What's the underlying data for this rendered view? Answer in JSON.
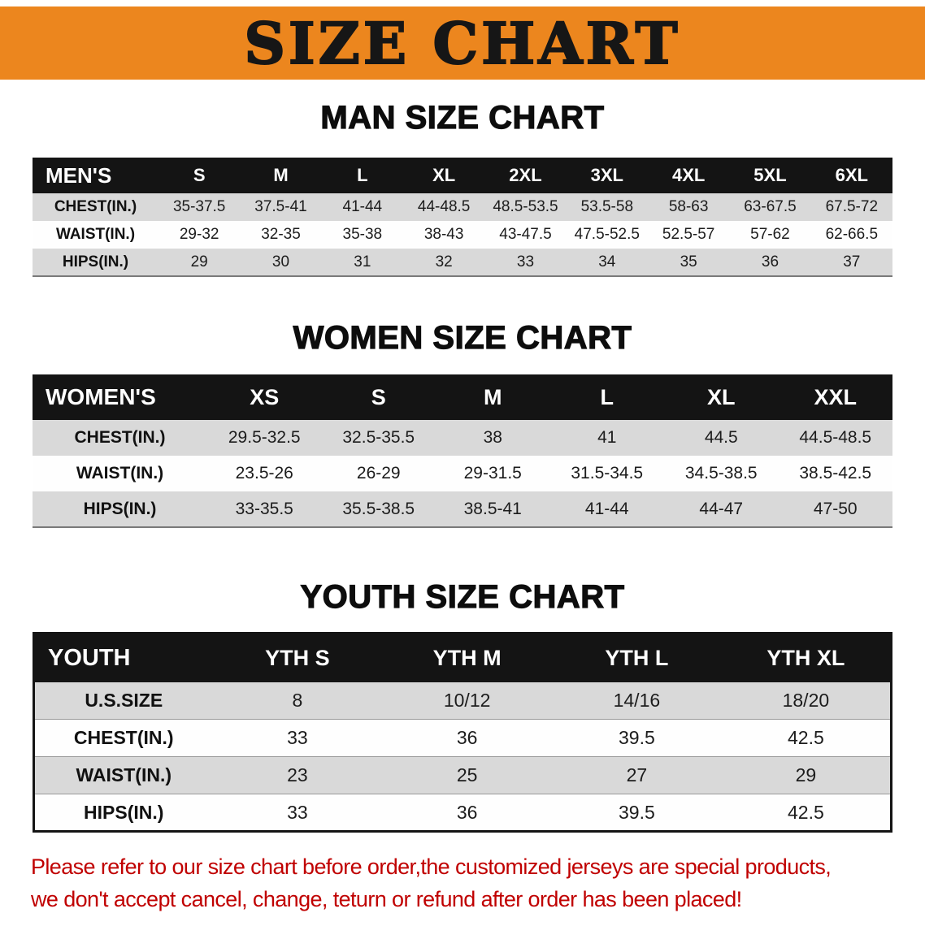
{
  "banner": {
    "title": "SIZE CHART",
    "bg_color": "#EC861E",
    "text_color": "#161616"
  },
  "sections": [
    {
      "heading": "MAN SIZE CHART",
      "table": {
        "header": [
          "MEN'S",
          "S",
          "M",
          "L",
          "XL",
          "2XL",
          "3XL",
          "4XL",
          "5XL",
          "6XL"
        ],
        "rows": [
          {
            "label": "CHEST(IN.)",
            "values": [
              "35-37.5",
              "37.5-41",
              "41-44",
              "44-48.5",
              "48.5-53.5",
              "53.5-58",
              "58-63",
              "63-67.5",
              "67.5-72"
            ]
          },
          {
            "label": "WAIST(IN.)",
            "values": [
              "29-32",
              "32-35",
              "35-38",
              "38-43",
              "43-47.5",
              "47.5-52.5",
              "52.5-57",
              "57-62",
              "62-66.5"
            ]
          },
          {
            "label": "HIPS(IN.)",
            "values": [
              "29",
              "30",
              "31",
              "32",
              "33",
              "34",
              "35",
              "36",
              "37"
            ]
          }
        ]
      }
    },
    {
      "heading": "WOMEN SIZE CHART",
      "table": {
        "header": [
          "WOMEN'S",
          "XS",
          "S",
          "M",
          "L",
          "XL",
          "XXL"
        ],
        "rows": [
          {
            "label": "CHEST(IN.)",
            "values": [
              "29.5-32.5",
              "32.5-35.5",
              "38",
              "41",
              "44.5",
              "44.5-48.5"
            ]
          },
          {
            "label": "WAIST(IN.)",
            "values": [
              "23.5-26",
              "26-29",
              "29-31.5",
              "31.5-34.5",
              "34.5-38.5",
              "38.5-42.5"
            ]
          },
          {
            "label": "HIPS(IN.)",
            "values": [
              "33-35.5",
              "35.5-38.5",
              "38.5-41",
              "41-44",
              "44-47",
              "47-50"
            ]
          }
        ]
      }
    },
    {
      "heading": "YOUTH SIZE CHART",
      "table": {
        "header": [
          "YOUTH",
          "YTH S",
          "YTH M",
          "YTH L",
          "YTH XL"
        ],
        "rows": [
          {
            "label": "U.S.SIZE",
            "values": [
              "8",
              "10/12",
              "14/16",
              "18/20"
            ]
          },
          {
            "label": "CHEST(IN.)",
            "values": [
              "33",
              "36",
              "39.5",
              "42.5"
            ]
          },
          {
            "label": "WAIST(IN.)",
            "values": [
              "23",
              "25",
              "27",
              "29"
            ]
          },
          {
            "label": "HIPS(IN.)",
            "values": [
              "33",
              "36",
              "39.5",
              "42.5"
            ]
          }
        ]
      }
    }
  ],
  "disclaimer": {
    "line1": "Please refer to our size chart before order,the customized jerseys are special products,",
    "line2": "we don't accept cancel, change, teturn or refund after order has been placed!",
    "color": "#C00000"
  }
}
